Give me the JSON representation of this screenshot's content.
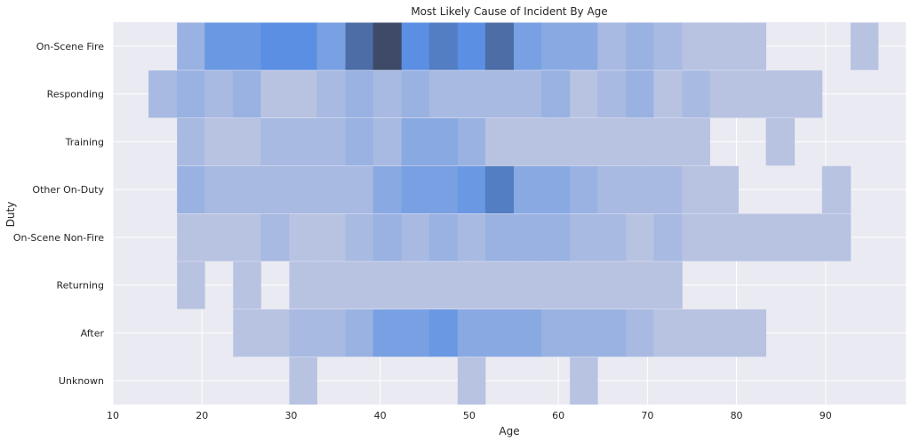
{
  "chart_data": {
    "type": "heatmap",
    "title": "Most Likely Cause of Incident By Age",
    "xlabel": "Age",
    "ylabel": "Duty",
    "xlim": [
      10,
      99
    ],
    "x_ticks": [
      10,
      20,
      30,
      40,
      50,
      60,
      70,
      80,
      90
    ],
    "categories": [
      "On-Scene Fire",
      "Responding",
      "Training",
      "Other On-Duty",
      "On-Scene Non-Fire",
      "Returning",
      "After",
      "Unknown"
    ],
    "bin_edges": [
      14.0,
      17.2,
      20.3,
      23.5,
      26.6,
      29.8,
      32.9,
      36.1,
      39.2,
      42.4,
      45.5,
      48.7,
      51.8,
      55.0,
      58.1,
      61.3,
      64.4,
      67.6,
      70.7,
      73.9,
      77.0,
      80.2,
      83.3,
      86.5,
      89.6,
      92.8,
      95.9
    ],
    "counts": [
      [
        0,
        3,
        6,
        6,
        7,
        7,
        5,
        9,
        11,
        7,
        8,
        7,
        9,
        5,
        4,
        4,
        2,
        3,
        2,
        1,
        1,
        1,
        0,
        0,
        0,
        1
      ],
      [
        2,
        3,
        2,
        3,
        1,
        1,
        2,
        3,
        2,
        3,
        2,
        2,
        2,
        2,
        3,
        1,
        2,
        3,
        1,
        2,
        1,
        1,
        1,
        1,
        0,
        0
      ],
      [
        0,
        2,
        1,
        1,
        2,
        2,
        2,
        3,
        2,
        4,
        4,
        3,
        1,
        1,
        1,
        1,
        1,
        1,
        1,
        1,
        0,
        0,
        1,
        0,
        0,
        0
      ],
      [
        0,
        3,
        2,
        2,
        2,
        2,
        2,
        2,
        4,
        5,
        5,
        6,
        8,
        4,
        4,
        3,
        2,
        2,
        2,
        1,
        1,
        0,
        0,
        0,
        1,
        0
      ],
      [
        0,
        1,
        1,
        1,
        2,
        1,
        1,
        2,
        3,
        2,
        3,
        2,
        3,
        3,
        3,
        2,
        2,
        1,
        2,
        1,
        1,
        1,
        1,
        1,
        1,
        0
      ],
      [
        0,
        1,
        0,
        1,
        0,
        1,
        1,
        1,
        1,
        1,
        1,
        1,
        1,
        1,
        1,
        1,
        1,
        1,
        1,
        0,
        0,
        0,
        0,
        0,
        0,
        0
      ],
      [
        0,
        0,
        0,
        1,
        1,
        2,
        2,
        3,
        5,
        5,
        6,
        4,
        4,
        4,
        3,
        3,
        3,
        2,
        1,
        1,
        1,
        1,
        0,
        0,
        0,
        0
      ],
      [
        0,
        0,
        0,
        0,
        0,
        1,
        0,
        0,
        0,
        0,
        0,
        1,
        0,
        0,
        0,
        1,
        0,
        0,
        0,
        0,
        0,
        0,
        0,
        0,
        0,
        0
      ]
    ],
    "vmax": 11,
    "colors": {
      "background": "#eaeaf2",
      "grid": "#ffffff",
      "low": "#b8c3e2",
      "mid": "#5a8fe3",
      "high": "#3e4a68"
    },
    "grid": true,
    "legend": "none"
  }
}
